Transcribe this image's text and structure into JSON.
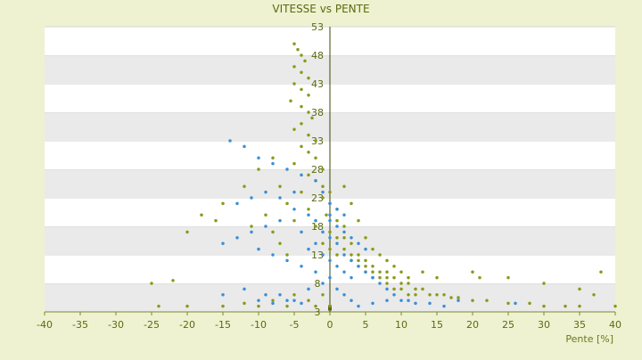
{
  "chart_data": {
    "type": "scatter",
    "title": "VITESSE vs PENTE",
    "xlabel": "Pente [%]",
    "ylabel": "",
    "xlim": [
      -40,
      40
    ],
    "ylim": [
      3,
      53
    ],
    "x_ticks": [
      -40,
      -35,
      -30,
      -25,
      -20,
      -15,
      -10,
      -5,
      0,
      5,
      10,
      15,
      20,
      25,
      30,
      35,
      40
    ],
    "y_ticks": [
      3,
      8,
      13,
      18,
      23,
      28,
      33,
      38,
      43,
      48,
      53
    ],
    "grid": "horizontal bands",
    "legend": "none",
    "series": [
      {
        "color": "#8a9a18",
        "points": [
          [
            -5,
            50
          ],
          [
            -4.5,
            49
          ],
          [
            -4,
            48
          ],
          [
            -3.5,
            47
          ],
          [
            -5,
            46
          ],
          [
            -4,
            45
          ],
          [
            -3,
            44
          ],
          [
            -5,
            43
          ],
          [
            -4,
            42
          ],
          [
            -3,
            41
          ],
          [
            -5.5,
            40
          ],
          [
            -4,
            39
          ],
          [
            -3,
            38
          ],
          [
            -2.5,
            37
          ],
          [
            -4,
            36
          ],
          [
            -5,
            35
          ],
          [
            -3,
            34
          ],
          [
            -2,
            33
          ],
          [
            -4,
            32
          ],
          [
            -3,
            31
          ],
          [
            -2,
            30
          ],
          [
            -5,
            29
          ],
          [
            -1,
            28
          ],
          [
            -3,
            27
          ],
          [
            -2,
            26
          ],
          [
            -1,
            25
          ],
          [
            0,
            24
          ],
          [
            -1,
            23
          ],
          [
            0,
            22
          ],
          [
            1,
            21
          ],
          [
            -0.5,
            20
          ],
          [
            1,
            19
          ],
          [
            2,
            18
          ],
          [
            -2,
            18
          ],
          [
            0,
            17
          ],
          [
            1,
            16
          ],
          [
            2,
            16
          ],
          [
            3,
            15
          ],
          [
            -1,
            15
          ],
          [
            0,
            14
          ],
          [
            2,
            14
          ],
          [
            3,
            13
          ],
          [
            4,
            13
          ],
          [
            5,
            12
          ],
          [
            1,
            13
          ],
          [
            3,
            12
          ],
          [
            4,
            12
          ],
          [
            5,
            11
          ],
          [
            6,
            11
          ],
          [
            4,
            11
          ],
          [
            6,
            10
          ],
          [
            7,
            10
          ],
          [
            8,
            10
          ],
          [
            5,
            10
          ],
          [
            7,
            9
          ],
          [
            8,
            9
          ],
          [
            9,
            9
          ],
          [
            6,
            9
          ],
          [
            10,
            8
          ],
          [
            8,
            8
          ],
          [
            11,
            8
          ],
          [
            12,
            7
          ],
          [
            9,
            7
          ],
          [
            13,
            7
          ],
          [
            10,
            7
          ],
          [
            14,
            6
          ],
          [
            11,
            6
          ],
          [
            15,
            6
          ],
          [
            12,
            6
          ],
          [
            16,
            6
          ],
          [
            17,
            5.5
          ],
          [
            18,
            5.5
          ],
          [
            20,
            5
          ],
          [
            22,
            5
          ],
          [
            25,
            4.5
          ],
          [
            28,
            4.5
          ],
          [
            30,
            4
          ],
          [
            33,
            4
          ],
          [
            35,
            4
          ],
          [
            40,
            4
          ],
          [
            -8,
            30
          ],
          [
            -10,
            28
          ],
          [
            -12,
            25
          ],
          [
            -15,
            22
          ],
          [
            -18,
            20
          ],
          [
            -20,
            17
          ],
          [
            -25,
            8
          ],
          [
            -22,
            8.5
          ],
          [
            -24,
            4
          ],
          [
            -20,
            4
          ],
          [
            -15,
            4
          ],
          [
            -12,
            4.5
          ],
          [
            -10,
            4
          ],
          [
            -8,
            5
          ],
          [
            -6,
            4
          ],
          [
            -5,
            6
          ],
          [
            -3,
            5
          ],
          [
            -2,
            4
          ],
          [
            -1,
            6
          ],
          [
            0,
            4
          ],
          [
            -7,
            25
          ],
          [
            -9,
            20
          ],
          [
            -11,
            18
          ],
          [
            -6,
            22
          ],
          [
            -8,
            17
          ],
          [
            -7,
            15
          ],
          [
            -6,
            13
          ],
          [
            -5,
            19
          ],
          [
            -4,
            24
          ],
          [
            -3,
            21
          ],
          [
            2,
            25
          ],
          [
            3,
            22
          ],
          [
            4,
            19
          ],
          [
            5,
            16
          ],
          [
            6,
            14
          ],
          [
            7,
            13
          ],
          [
            8,
            12
          ],
          [
            9,
            11
          ],
          [
            10,
            10
          ],
          [
            11,
            9
          ],
          [
            13,
            10
          ],
          [
            15,
            9
          ],
          [
            20,
            10
          ],
          [
            21,
            9
          ],
          [
            25,
            9
          ],
          [
            30,
            8
          ],
          [
            35,
            7
          ],
          [
            37,
            6
          ],
          [
            38,
            10
          ],
          [
            -16,
            19
          ]
        ]
      },
      {
        "color": "#3a8fd8",
        "points": [
          [
            -14,
            33
          ],
          [
            -12,
            32
          ],
          [
            -10,
            30
          ],
          [
            -8,
            29
          ],
          [
            -6,
            28
          ],
          [
            -4,
            27
          ],
          [
            -2,
            26
          ],
          [
            -1,
            24
          ],
          [
            0,
            22
          ],
          [
            -3,
            20
          ],
          [
            -5,
            21
          ],
          [
            -7,
            19
          ],
          [
            -9,
            18
          ],
          [
            -11,
            17
          ],
          [
            -13,
            16
          ],
          [
            -15,
            15
          ],
          [
            -10,
            14
          ],
          [
            -8,
            13
          ],
          [
            -6,
            12
          ],
          [
            -4,
            11
          ],
          [
            -2,
            10
          ],
          [
            0,
            19
          ],
          [
            1,
            18
          ],
          [
            2,
            17
          ],
          [
            3,
            16
          ],
          [
            4,
            15
          ],
          [
            5,
            14
          ],
          [
            1,
            15
          ],
          [
            2,
            13
          ],
          [
            3,
            12
          ],
          [
            4,
            11
          ],
          [
            5,
            10
          ],
          [
            6,
            9
          ],
          [
            7,
            8
          ],
          [
            8,
            7
          ],
          [
            9,
            6
          ],
          [
            10,
            5
          ],
          [
            11,
            5
          ],
          [
            12,
            4.5
          ],
          [
            14,
            4.5
          ],
          [
            -1,
            17
          ],
          [
            0,
            16
          ],
          [
            -2,
            15
          ],
          [
            -3,
            14
          ],
          [
            -1,
            13
          ],
          [
            0,
            12
          ],
          [
            1,
            11
          ],
          [
            2,
            10
          ],
          [
            3,
            9
          ],
          [
            -15,
            6
          ],
          [
            -12,
            7
          ],
          [
            -9,
            6
          ],
          [
            -7,
            6
          ],
          [
            -5,
            5
          ],
          [
            -3,
            7
          ],
          [
            -1,
            8
          ],
          [
            0,
            9
          ],
          [
            1,
            7
          ],
          [
            2,
            6
          ],
          [
            3,
            5
          ],
          [
            -13,
            22
          ],
          [
            -11,
            23
          ],
          [
            -9,
            24
          ],
          [
            -7,
            23
          ],
          [
            -5,
            24
          ],
          [
            -4,
            17
          ],
          [
            -2,
            19
          ],
          [
            0,
            20
          ],
          [
            1,
            21
          ],
          [
            2,
            20
          ],
          [
            -10,
            5
          ],
          [
            -8,
            4.5
          ],
          [
            -6,
            5
          ],
          [
            -4,
            4.5
          ],
          [
            4,
            4
          ],
          [
            6,
            4.5
          ],
          [
            8,
            5
          ],
          [
            16,
            4
          ],
          [
            18,
            5
          ],
          [
            26,
            4.5
          ]
        ]
      }
    ]
  }
}
